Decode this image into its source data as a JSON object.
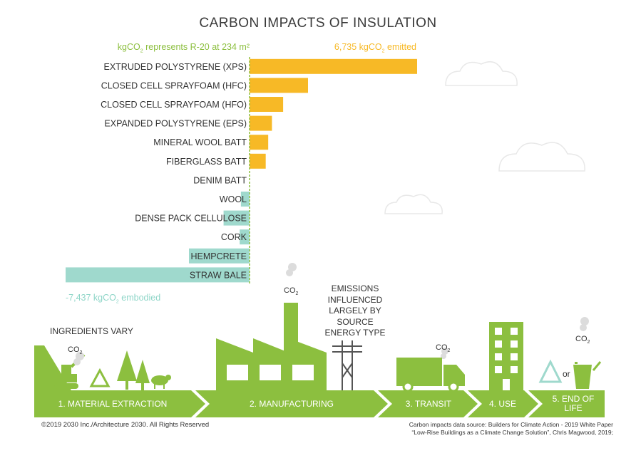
{
  "chart_data": {
    "type": "bar",
    "orientation": "horizontal",
    "title": "CARBON IMPACTS OF INSULATION",
    "header_left": "kgCO",
    "header_left_tail": " represents R-20 at 234 m²",
    "header_right": "6,735 kgCO",
    "header_right_tail": " emitted",
    "footer_left": "-7,437 kgCO",
    "footer_left_tail": " embodied",
    "categories": [
      "EXTRUDED POLYSTYRENE (XPS)",
      "CLOSED CELL SPRAYFOAM (HFC)",
      "CLOSED CELL SPRAYFOAM (HFO)",
      "EXPANDED POLYSTYRENE (EPS)",
      "MINERAL WOOL BATT",
      "FIBERGLASS BATT",
      "DENIM BATT",
      "WOOL",
      "DENSE PACK CELLULOSE",
      "CORK",
      "HEMPCRETE",
      "STRAW BALE"
    ],
    "values": [
      6735,
      2350,
      1350,
      900,
      750,
      650,
      0,
      -350,
      -1050,
      -400,
      -2450,
      -7437
    ],
    "xlim": [
      -7437,
      6735
    ],
    "colors": {
      "positive": "#f7b926",
      "negative": "#9fd9cd",
      "zero_line": "#8cbf3f"
    }
  },
  "lifecycle": {
    "emissions_note_lines": [
      "EMISSIONS",
      "INFLUENCED",
      "LARGELY BY",
      "SOURCE",
      "ENERGY TYPE"
    ],
    "ingredients_note": "INGREDIENTS VARY",
    "co2": "CO",
    "or_label": "or",
    "stages": [
      "1. MATERIAL EXTRACTION",
      "2. MANUFACTURING",
      "3. TRANSIT",
      "4. USE",
      "5. END OF LIFE"
    ],
    "stage_color": "#8cbf3f"
  },
  "footer": {
    "copyright": "©2019 2030 Inc./Architecture 2030. All Rights Reserved",
    "source_line1": "Carbon impacts data source: Builders for Climate Action - 2019 White Paper",
    "source_line2": "“Low-Rise Buildings as a Climate Change Solution”, Chris Magwood, 2019;"
  }
}
